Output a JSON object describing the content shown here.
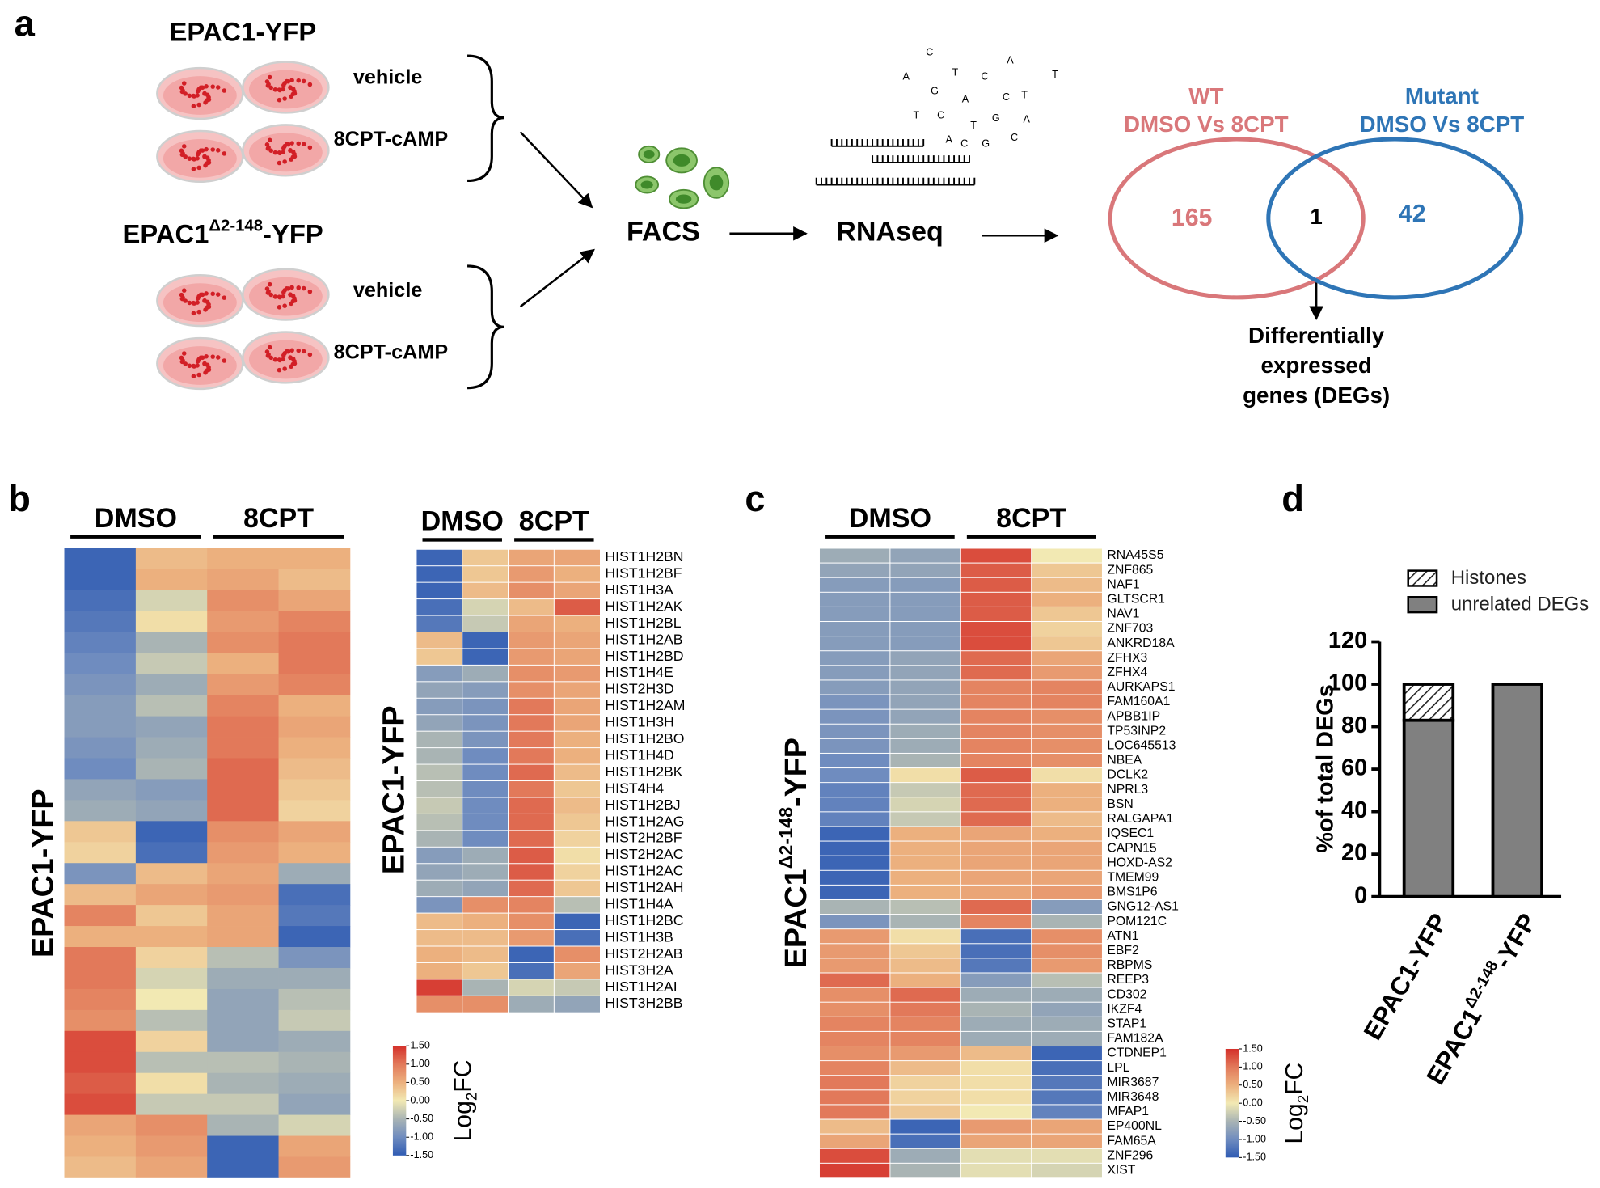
{
  "panel_labels": [
    "a",
    "b",
    "c",
    "d"
  ],
  "panel_a": {
    "groups": [
      {
        "name": [
          "EPAC1-YFP"
        ],
        "conditions": [
          "vehicle",
          "8CPT-cAMP"
        ]
      },
      {
        "name": [
          "EPAC1",
          "Δ2-148",
          "-YFP"
        ],
        "conditions": [
          "vehicle",
          "8CPT-cAMP"
        ]
      }
    ],
    "facs": "FACS",
    "rnaseq": "RNAseq",
    "sequence_letters": [
      "C",
      "A",
      "T",
      "C",
      "A",
      "T",
      "G",
      "A",
      "T",
      "C",
      "T",
      "C",
      "T",
      "G",
      "A",
      "A",
      "G",
      "C",
      "C"
    ],
    "venn": {
      "left": {
        "title": [
          "WT",
          "DMSO Vs 8CPT"
        ],
        "count": 165,
        "color": "#d9777a"
      },
      "overlap": 1,
      "right": {
        "title": [
          "Mutant",
          "DMSO Vs 8CPT"
        ],
        "count": 42,
        "color": "#2e75b6"
      },
      "outcome": [
        "Differentially",
        "expressed",
        "genes (DEGs)"
      ]
    }
  },
  "colorscale": {
    "range": [
      -1.5,
      1.5
    ],
    "colors": [
      "#2f5bb3",
      "#6f8cbf",
      "#a9b4b4",
      "#f2e9b3",
      "#ecb07e",
      "#e2795a",
      "#d4302a"
    ]
  },
  "panel_b": {
    "overview": {
      "headers": [
        "DMSO",
        "8CPT"
      ],
      "row_label": [
        "EPAC1-YFP"
      ],
      "values": [
        [
          -1.4,
          0.4,
          0.5,
          0.5
        ],
        [
          -1.4,
          0.5,
          0.6,
          0.4
        ],
        [
          -1.3,
          -0.2,
          0.8,
          0.6
        ],
        [
          -1.2,
          0.1,
          0.7,
          0.9
        ],
        [
          -1.1,
          -0.5,
          0.8,
          1.0
        ],
        [
          -1.0,
          -0.3,
          0.5,
          1.0
        ],
        [
          -0.9,
          -0.6,
          0.7,
          0.9
        ],
        [
          -0.8,
          -0.4,
          0.9,
          0.5
        ],
        [
          -0.8,
          -0.7,
          1.0,
          0.6
        ],
        [
          -0.9,
          -0.6,
          1.0,
          0.5
        ],
        [
          -1.0,
          -0.5,
          1.1,
          0.4
        ],
        [
          -0.7,
          -0.8,
          1.1,
          0.3
        ],
        [
          -0.6,
          -0.7,
          1.1,
          0.2
        ],
        [
          0.3,
          -1.4,
          0.8,
          0.6
        ],
        [
          0.2,
          -1.3,
          0.7,
          0.5
        ],
        [
          -0.9,
          0.4,
          0.6,
          -0.6
        ],
        [
          0.4,
          0.6,
          0.7,
          -1.3
        ],
        [
          0.9,
          0.3,
          0.6,
          -1.2
        ],
        [
          0.5,
          0.5,
          0.6,
          -1.4
        ],
        [
          1.0,
          0.2,
          -0.4,
          -0.9
        ],
        [
          1.0,
          -0.2,
          -0.6,
          -0.6
        ],
        [
          0.9,
          0.0,
          -0.7,
          -0.4
        ],
        [
          0.8,
          -0.4,
          -0.7,
          -0.3
        ],
        [
          1.3,
          0.2,
          -0.7,
          -0.6
        ],
        [
          1.3,
          -0.4,
          -0.4,
          -0.5
        ],
        [
          1.2,
          0.1,
          -0.5,
          -0.6
        ],
        [
          1.3,
          -0.3,
          -0.3,
          -0.7
        ],
        [
          0.6,
          0.8,
          -0.5,
          -0.2
        ],
        [
          0.5,
          0.7,
          -1.4,
          0.6
        ],
        [
          0.4,
          0.6,
          -1.4,
          0.7
        ]
      ]
    },
    "histones": {
      "headers": [
        "DMSO",
        "8CPT"
      ],
      "row_label": [
        "EPAC1-YFP"
      ],
      "genes": [
        "HIST1H2BN",
        "HIST1H2BF",
        "HIST1H3A",
        "HIST1H2AK",
        "HIST1H2BL",
        "HIST1H2AB",
        "HIST1H2BD",
        "HIST1H4E",
        "HIST2H3D",
        "HIST1H2AM",
        "HIST1H3H",
        "HIST1H2BO",
        "HIST1H4D",
        "HIST1H2BK",
        "HIST4H4",
        "HIST1H2BJ",
        "HIST1H2AG",
        "HIST2H2BF",
        "HIST2H2AC",
        "HIST1H2AC",
        "HIST1H2AH",
        "HIST1H4A",
        "HIST1H2BC",
        "HIST1H3B",
        "HIST2H2AB",
        "HIST3H2A",
        "HIST1H2AI",
        "HIST3H2BB"
      ],
      "values": [
        [
          -1.4,
          0.3,
          0.6,
          0.6
        ],
        [
          -1.4,
          0.3,
          0.7,
          0.5
        ],
        [
          -1.4,
          0.4,
          0.8,
          0.6
        ],
        [
          -1.3,
          -0.2,
          0.4,
          1.2
        ],
        [
          -1.2,
          -0.3,
          0.6,
          0.5
        ],
        [
          0.4,
          -1.4,
          0.7,
          0.6
        ],
        [
          0.3,
          -1.4,
          0.7,
          0.6
        ],
        [
          -0.8,
          -0.6,
          0.8,
          0.7
        ],
        [
          -0.7,
          -0.8,
          0.8,
          0.6
        ],
        [
          -0.8,
          -0.9,
          1.0,
          0.6
        ],
        [
          -0.7,
          -0.9,
          1.0,
          0.6
        ],
        [
          -0.5,
          -0.9,
          1.0,
          0.5
        ],
        [
          -0.5,
          -1.0,
          1.0,
          0.5
        ],
        [
          -0.4,
          -1.0,
          1.1,
          0.4
        ],
        [
          -0.4,
          -1.0,
          1.0,
          0.3
        ],
        [
          -0.3,
          -1.0,
          1.1,
          0.4
        ],
        [
          -0.4,
          -1.0,
          1.1,
          0.3
        ],
        [
          -0.5,
          -1.0,
          1.1,
          0.2
        ],
        [
          -0.8,
          -0.6,
          1.2,
          0.1
        ],
        [
          -0.7,
          -0.6,
          1.2,
          0.2
        ],
        [
          -0.6,
          -0.7,
          1.1,
          0.3
        ],
        [
          -0.9,
          0.8,
          0.9,
          -0.4
        ],
        [
          0.4,
          0.5,
          0.8,
          -1.4
        ],
        [
          0.4,
          0.4,
          0.7,
          -1.3
        ],
        [
          0.5,
          0.4,
          -1.4,
          0.8
        ],
        [
          0.5,
          0.3,
          -1.3,
          0.6
        ],
        [
          1.4,
          -0.5,
          -0.2,
          -0.3
        ],
        [
          0.8,
          0.8,
          -0.6,
          -0.7
        ]
      ]
    },
    "colorbar": {
      "ticks": [
        {
          "value": 1.5,
          "label": "1.50"
        },
        {
          "value": 1,
          "label": "1.00"
        },
        {
          "value": 0.5,
          "label": "0.50"
        },
        {
          "value": 0,
          "label": "0.00"
        },
        {
          "value": -0.5,
          "label": "-0.50"
        },
        {
          "value": -1,
          "label": "-1.00"
        },
        {
          "value": -1.5,
          "label": "-1.50"
        }
      ],
      "label": [
        "Log",
        "2",
        "FC"
      ]
    }
  },
  "panel_c": {
    "headers": [
      "DMSO",
      "8CPT"
    ],
    "row_label": [
      "EPAC1",
      "Δ2-148",
      "-YFP"
    ],
    "genes": [
      "RNA45S5",
      "ZNF865",
      "NAF1",
      "GLTSCR1",
      "NAV1",
      "ZNF703",
      "ANKRD18A",
      "ZFHX3",
      "ZFHX4",
      "AURKAPS1",
      "FAM160A1",
      "APBB1IP",
      "TP53INP2",
      "LOC645513",
      "NBEA",
      "DCLK2",
      "NPRL3",
      "BSN",
      "RALGAPA1",
      "IQSEC1",
      "CAPN15",
      "HOXD-AS2",
      "TMEM99",
      "BMS1P6",
      "GNG12-AS1",
      "POM121C",
      "ATN1",
      "EBF2",
      "RBPMS",
      "REEP3",
      "CD302",
      "IKZF4",
      "STAP1",
      "FAM182A",
      "CTDNEP1",
      "LPL",
      "MIR3687",
      "MIR3648",
      "MFAP1",
      "EP400NL",
      "FAM65A",
      "ZNF296",
      "XIST"
    ],
    "values": [
      [
        -0.6,
        -0.7,
        1.3,
        0.0
      ],
      [
        -0.7,
        -0.7,
        1.2,
        0.3
      ],
      [
        -0.8,
        -0.8,
        1.2,
        0.4
      ],
      [
        -0.8,
        -0.8,
        1.2,
        0.5
      ],
      [
        -0.8,
        -0.8,
        1.2,
        0.3
      ],
      [
        -0.8,
        -0.8,
        1.3,
        0.2
      ],
      [
        -0.8,
        -0.8,
        1.3,
        0.3
      ],
      [
        -0.8,
        -0.7,
        1.1,
        0.6
      ],
      [
        -0.8,
        -0.7,
        1.1,
        0.7
      ],
      [
        -0.8,
        -0.7,
        0.9,
        0.9
      ],
      [
        -0.9,
        -0.7,
        0.9,
        0.9
      ],
      [
        -0.9,
        -0.7,
        0.9,
        0.8
      ],
      [
        -0.9,
        -0.6,
        0.9,
        0.8
      ],
      [
        -0.9,
        -0.6,
        0.9,
        0.8
      ],
      [
        -1.0,
        -0.5,
        0.9,
        0.8
      ],
      [
        -1.0,
        0.1,
        1.2,
        0.1
      ],
      [
        -1.1,
        -0.3,
        1.1,
        0.5
      ],
      [
        -1.1,
        -0.2,
        1.1,
        0.5
      ],
      [
        -1.1,
        -0.3,
        1.1,
        0.4
      ],
      [
        -1.4,
        0.5,
        0.6,
        0.5
      ],
      [
        -1.4,
        0.5,
        0.6,
        0.6
      ],
      [
        -1.4,
        0.5,
        0.6,
        0.6
      ],
      [
        -1.4,
        0.5,
        0.6,
        0.6
      ],
      [
        -1.4,
        0.5,
        0.6,
        0.7
      ],
      [
        -0.5,
        -0.4,
        1.1,
        -0.8
      ],
      [
        -0.9,
        -0.5,
        0.9,
        -0.5
      ],
      [
        0.7,
        0.1,
        -1.3,
        0.8
      ],
      [
        0.7,
        0.3,
        -1.3,
        0.8
      ],
      [
        0.7,
        0.4,
        -1.2,
        0.7
      ],
      [
        1.1,
        0.5,
        -0.8,
        -0.4
      ],
      [
        0.8,
        1.1,
        -0.6,
        -0.6
      ],
      [
        0.8,
        1.0,
        -0.5,
        -0.7
      ],
      [
        0.9,
        0.9,
        -0.6,
        -0.6
      ],
      [
        0.9,
        0.9,
        -0.6,
        -0.6
      ],
      [
        0.8,
        0.7,
        0.4,
        -1.4
      ],
      [
        0.9,
        0.4,
        0.1,
        -1.3
      ],
      [
        1.0,
        0.2,
        0.1,
        -1.2
      ],
      [
        1.0,
        0.2,
        0.1,
        -1.2
      ],
      [
        1.0,
        0.3,
        0.0,
        -1.1
      ],
      [
        0.4,
        -1.4,
        0.7,
        0.6
      ],
      [
        0.6,
        -1.3,
        0.6,
        0.6
      ],
      [
        1.3,
        -0.6,
        -0.1,
        -0.1
      ],
      [
        1.4,
        -0.5,
        -0.1,
        -0.2
      ]
    ],
    "colorbar": {
      "ticks": [
        {
          "value": 1.5,
          "label": "1.50"
        },
        {
          "value": 1,
          "label": "1.00"
        },
        {
          "value": 0.5,
          "label": "0.50"
        },
        {
          "value": 0,
          "label": "0.00"
        },
        {
          "value": -0.5,
          "label": "-0.50"
        },
        {
          "value": -1,
          "label": "-1.00"
        },
        {
          "value": -1.5,
          "label": "-1.50"
        }
      ],
      "label": [
        "Log",
        "2",
        "FC"
      ]
    }
  },
  "chart_data": {
    "type": "bar",
    "stacked": true,
    "y_label": "%of total DEGs",
    "categories": [
      [
        "EPAC1-YFP"
      ],
      [
        "EPAC1",
        "Δ2-148",
        "-YFP"
      ]
    ],
    "series": [
      {
        "name": "Histones",
        "color": "#ffffff",
        "pattern": "hatch",
        "values": [
          17,
          0
        ]
      },
      {
        "name": "unrelated DEGs",
        "color": "#808080",
        "values": [
          83,
          100
        ]
      }
    ],
    "ylim": [
      0,
      120
    ],
    "yticks": [
      0,
      20,
      40,
      60,
      80,
      100,
      120
    ]
  }
}
